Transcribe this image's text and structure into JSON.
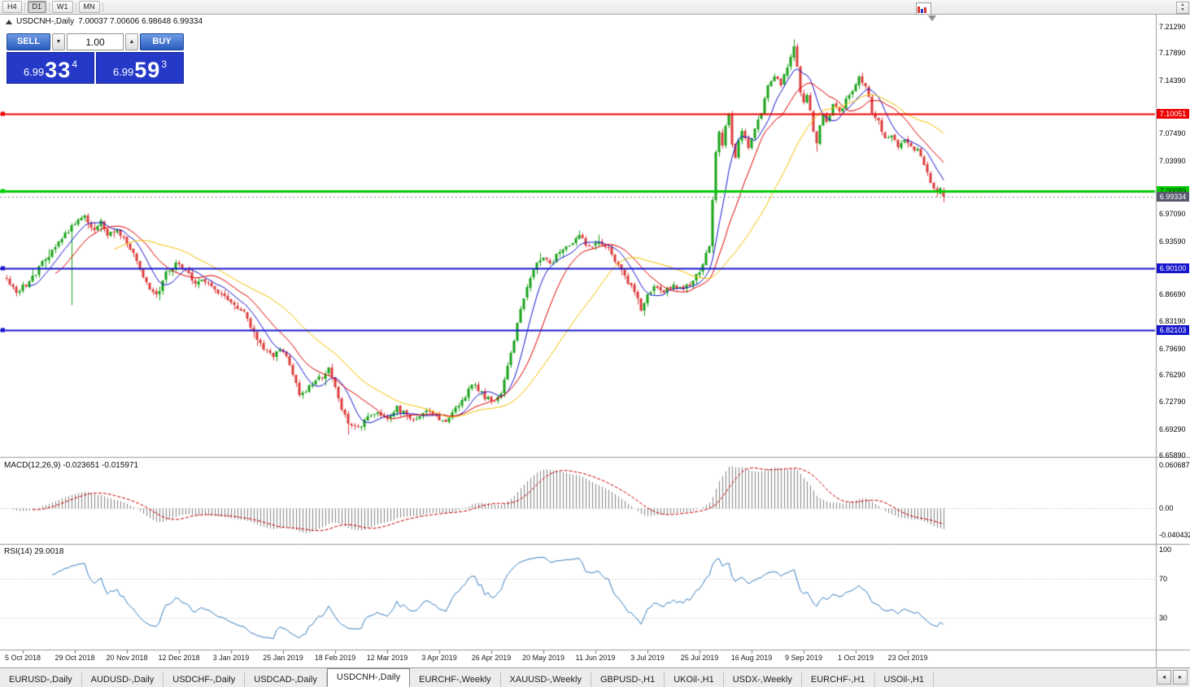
{
  "toolbar": {
    "timeframes": [
      {
        "label": "H4",
        "active": false
      },
      {
        "label": "D1",
        "active": true
      },
      {
        "label": "W1",
        "active": false
      },
      {
        "label": "MN",
        "active": false
      }
    ]
  },
  "chart": {
    "title_symbol": "USDCNH-,Daily",
    "ohlc": {
      "open": "7.00037",
      "high": "7.00606",
      "low": "6.98648",
      "close": "6.99334"
    },
    "trade_panel": {
      "sell_label": "SELL",
      "buy_label": "BUY",
      "volume": "1.00",
      "sell_price": {
        "head": "6.99",
        "main": "33",
        "pip": "4"
      },
      "buy_price": {
        "head": "6.99",
        "main": "59",
        "pip": "3"
      }
    },
    "price_ticks": [
      "7.21290",
      "7.17890",
      "7.14390",
      "7.07490",
      "7.03990",
      "6.97090",
      "6.93590",
      "6.86690",
      "6.83190",
      "6.79690",
      "6.76290",
      "6.72790",
      "6.69290",
      "6.65890"
    ],
    "levels": [
      {
        "label": "7.10051",
        "price": 7.10051,
        "color": "#ee0000",
        "text_color": "#ffffff",
        "width": 2
      },
      {
        "label": "7.00089",
        "price": 7.00089,
        "color": "#00cc00",
        "text_color": "#002b00",
        "width": 3
      },
      {
        "label": "6.90100",
        "price": 6.901,
        "color": "#1515cc",
        "text_color": "#ffffff",
        "width": 2
      },
      {
        "label": "6.82103",
        "price": 6.82103,
        "color": "#1515cc",
        "text_color": "#ffffff",
        "width": 2
      }
    ],
    "bid_tag": {
      "label": "6.99334",
      "price": 6.99334,
      "color": "#5a5a6e"
    },
    "date_labels": [
      "5 Oct 2018",
      "29 Oct 2018",
      "20 Nov 2018",
      "12 Dec 2018",
      "3 Jan 2019",
      "25 Jan 2019",
      "18 Feb 2019",
      "12 Mar 2019",
      "3 Apr 2019",
      "26 Apr 2019",
      "20 May 2019",
      "11 Jun 2019",
      "3 Jul 2019",
      "25 Jul 2019",
      "16 Aug 2019",
      "9 Sep 2019",
      "1 Oct 2019",
      "23 Oct 2019"
    ]
  },
  "macd": {
    "label": "MACD(12,26,9) -0.023651 -0.015971",
    "axis": [
      "0.060687",
      "0.00",
      "-0.040432"
    ]
  },
  "rsi": {
    "label": "RSI(14) 29.0018",
    "axis": [
      {
        "v": 100,
        "label": "100"
      },
      {
        "v": 70,
        "label": "70"
      },
      {
        "v": 30,
        "label": "30"
      }
    ]
  },
  "tabbar": {
    "tabs": [
      {
        "label": "EURUSD-,Daily",
        "active": false
      },
      {
        "label": "AUDUSD-,Daily",
        "active": false
      },
      {
        "label": "USDCHF-,Daily",
        "active": false
      },
      {
        "label": "USDCAD-,Daily",
        "active": false
      },
      {
        "label": "USDCNH-,Daily",
        "active": true
      },
      {
        "label": "EURCHF-,Weekly",
        "active": false
      },
      {
        "label": "XAUUSD-,Weekly",
        "active": false
      },
      {
        "label": "GBPUSD-,H1",
        "active": false
      },
      {
        "label": "UKOil-,H1",
        "active": false
      },
      {
        "label": "USDX-,Weekly",
        "active": false
      },
      {
        "label": "EURCHF-,H1",
        "active": false
      },
      {
        "label": "USOil-,H1",
        "active": false
      }
    ]
  },
  "chart_data": {
    "type": "candlestick",
    "symbol": "USDCNH",
    "timeframe": "Daily",
    "bars_total": 289,
    "price_range_visible": [
      6.6589,
      7.2129
    ],
    "colors": {
      "up": "#18a318",
      "down": "#dd3b3b"
    },
    "moving_averages": [
      {
        "period": 8,
        "color": "#1414d2"
      },
      {
        "period": 16,
        "color": "#e00000"
      },
      {
        "period": 34,
        "color": "#f2c200"
      }
    ],
    "indicators": [
      {
        "name": "MACD",
        "params": [
          12,
          26,
          9
        ],
        "values": [
          -0.023651,
          -0.015971
        ]
      },
      {
        "name": "RSI",
        "params": [
          14
        ],
        "value": 29.0018
      }
    ],
    "anchors": [
      [
        0,
        6.887
      ],
      [
        3,
        6.87
      ],
      [
        6,
        6.88
      ],
      [
        9,
        6.895
      ],
      [
        12,
        6.912
      ],
      [
        15,
        6.928
      ],
      [
        18,
        6.945
      ],
      [
        21,
        6.958
      ],
      [
        24,
        6.968
      ],
      [
        27,
        6.95
      ],
      [
        29,
        6.962
      ],
      [
        31,
        6.944
      ],
      [
        34,
        6.95
      ],
      [
        37,
        6.934
      ],
      [
        40,
        6.91
      ],
      [
        43,
        6.88
      ],
      [
        46,
        6.866
      ],
      [
        49,
        6.893
      ],
      [
        52,
        6.908
      ],
      [
        55,
        6.898
      ],
      [
        58,
        6.882
      ],
      [
        61,
        6.886
      ],
      [
        64,
        6.874
      ],
      [
        67,
        6.866
      ],
      [
        70,
        6.853
      ],
      [
        73,
        6.842
      ],
      [
        76,
        6.818
      ],
      [
        79,
        6.798
      ],
      [
        82,
        6.788
      ],
      [
        85,
        6.795
      ],
      [
        88,
        6.764
      ],
      [
        90,
        6.737
      ],
      [
        93,
        6.746
      ],
      [
        96,
        6.758
      ],
      [
        99,
        6.772
      ],
      [
        101,
        6.75
      ],
      [
        103,
        6.72
      ],
      [
        105,
        6.7
      ],
      [
        108,
        6.692
      ],
      [
        111,
        6.71
      ],
      [
        114,
        6.714
      ],
      [
        117,
        6.706
      ],
      [
        120,
        6.72
      ],
      [
        123,
        6.71
      ],
      [
        126,
        6.703
      ],
      [
        129,
        6.717
      ],
      [
        132,
        6.71
      ],
      [
        135,
        6.705
      ],
      [
        138,
        6.722
      ],
      [
        141,
        6.734
      ],
      [
        143,
        6.75
      ],
      [
        145,
        6.744
      ],
      [
        147,
        6.734
      ],
      [
        150,
        6.728
      ],
      [
        152,
        6.742
      ],
      [
        154,
        6.776
      ],
      [
        156,
        6.81
      ],
      [
        158,
        6.85
      ],
      [
        160,
        6.878
      ],
      [
        162,
        6.9
      ],
      [
        164,
        6.914
      ],
      [
        167,
        6.906
      ],
      [
        170,
        6.921
      ],
      [
        173,
        6.929
      ],
      [
        176,
        6.944
      ],
      [
        179,
        6.927
      ],
      [
        182,
        6.933
      ],
      [
        185,
        6.925
      ],
      [
        188,
        6.905
      ],
      [
        191,
        6.88
      ],
      [
        193,
        6.872
      ],
      [
        195,
        6.846
      ],
      [
        197,
        6.865
      ],
      [
        199,
        6.877
      ],
      [
        202,
        6.871
      ],
      [
        205,
        6.879
      ],
      [
        208,
        6.875
      ],
      [
        211,
        6.883
      ],
      [
        213,
        6.898
      ],
      [
        216,
        6.928
      ],
      [
        217,
        6.986
      ],
      [
        218,
        7.05
      ],
      [
        219,
        7.08
      ],
      [
        220,
        7.058
      ],
      [
        221,
        7.084
      ],
      [
        222,
        7.098
      ],
      [
        223,
        7.062
      ],
      [
        224,
        7.043
      ],
      [
        225,
        7.068
      ],
      [
        226,
        7.08
      ],
      [
        228,
        7.058
      ],
      [
        230,
        7.082
      ],
      [
        232,
        7.102
      ],
      [
        234,
        7.134
      ],
      [
        236,
        7.148
      ],
      [
        238,
        7.138
      ],
      [
        240,
        7.164
      ],
      [
        242,
        7.186
      ],
      [
        243,
        7.162
      ],
      [
        244,
        7.13
      ],
      [
        245,
        7.114
      ],
      [
        246,
        7.124
      ],
      [
        247,
        7.102
      ],
      [
        248,
        7.078
      ],
      [
        249,
        7.062
      ],
      [
        250,
        7.084
      ],
      [
        251,
        7.098
      ],
      [
        252,
        7.088
      ],
      [
        254,
        7.11
      ],
      [
        256,
        7.102
      ],
      [
        258,
        7.118
      ],
      [
        260,
        7.132
      ],
      [
        262,
        7.146
      ],
      [
        264,
        7.136
      ],
      [
        266,
        7.104
      ],
      [
        268,
        7.092
      ],
      [
        270,
        7.068
      ],
      [
        272,
        7.074
      ],
      [
        274,
        7.06
      ],
      [
        276,
        7.066
      ],
      [
        278,
        7.058
      ],
      [
        280,
        7.054
      ],
      [
        282,
        7.038
      ],
      [
        284,
        7.012
      ],
      [
        286,
        6.996
      ],
      [
        287,
        7.002
      ],
      [
        288,
        6.9933
      ]
    ],
    "special_wicks": [
      {
        "i": 20,
        "low": 6.853
      },
      {
        "i": 105,
        "low": 6.686
      },
      {
        "i": 217,
        "low": 6.928
      },
      {
        "i": 242,
        "high": 7.197
      }
    ]
  }
}
